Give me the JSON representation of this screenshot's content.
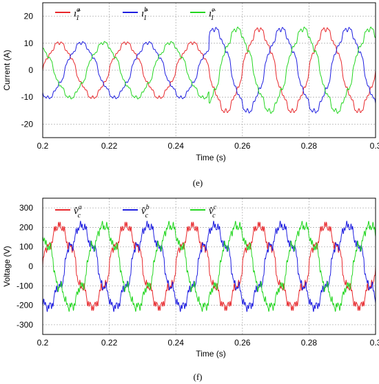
{
  "chart_data": [
    {
      "type": "line",
      "caption": "(e)",
      "xlabel": "Time (s)",
      "ylabel": "Current (A)",
      "xlim": [
        0.2,
        0.3
      ],
      "ylim": [
        -25,
        25
      ],
      "xticks": [
        "0.2",
        "0.22",
        "0.24",
        "0.26",
        "0.28",
        "0.3"
      ],
      "yticks": [
        "20",
        "10",
        "0",
        "-10",
        "-20"
      ],
      "grid": true,
      "legend_position": "top-left",
      "frequency_hz": 50,
      "step_time": 0.25,
      "amplitude_before": 10,
      "amplitude_after": 15,
      "series": [
        {
          "name": "î1a",
          "base": "ı̂",
          "sub": "1",
          "sup": "a",
          "color": "#e8262a",
          "phase_deg": 0
        },
        {
          "name": "î1b",
          "base": "ı̂",
          "sub": "1",
          "sup": "b",
          "color": "#1d1de0",
          "phase_deg": -120
        },
        {
          "name": "î1c",
          "base": "ı̂",
          "sub": "1",
          "sup": "c",
          "color": "#22d61f",
          "phase_deg": 120
        }
      ]
    },
    {
      "type": "line",
      "caption": "(f)",
      "xlabel": "Time (s)",
      "ylabel": "Voltage (V)",
      "xlim": [
        0.2,
        0.3
      ],
      "ylim": [
        -350,
        350
      ],
      "xticks": [
        "0.2",
        "0.22",
        "0.24",
        "0.26",
        "0.28",
        "0.3"
      ],
      "yticks": [
        "300",
        "200",
        "100",
        "0",
        "-100",
        "-200",
        "-300"
      ],
      "grid": true,
      "legend_position": "top-left",
      "frequency_hz": 50,
      "amplitude": 200,
      "series": [
        {
          "name": "v̂ca",
          "base": "v̂",
          "sub": "c",
          "sup": "a",
          "color": "#e8262a",
          "phase_deg": 0
        },
        {
          "name": "v̂cb",
          "base": "v̂",
          "sub": "c",
          "sup": "b",
          "color": "#1d1de0",
          "phase_deg": -120
        },
        {
          "name": "v̂cc",
          "base": "v̂",
          "sub": "c",
          "sup": "c",
          "color": "#22d61f",
          "phase_deg": 120
        }
      ]
    }
  ]
}
